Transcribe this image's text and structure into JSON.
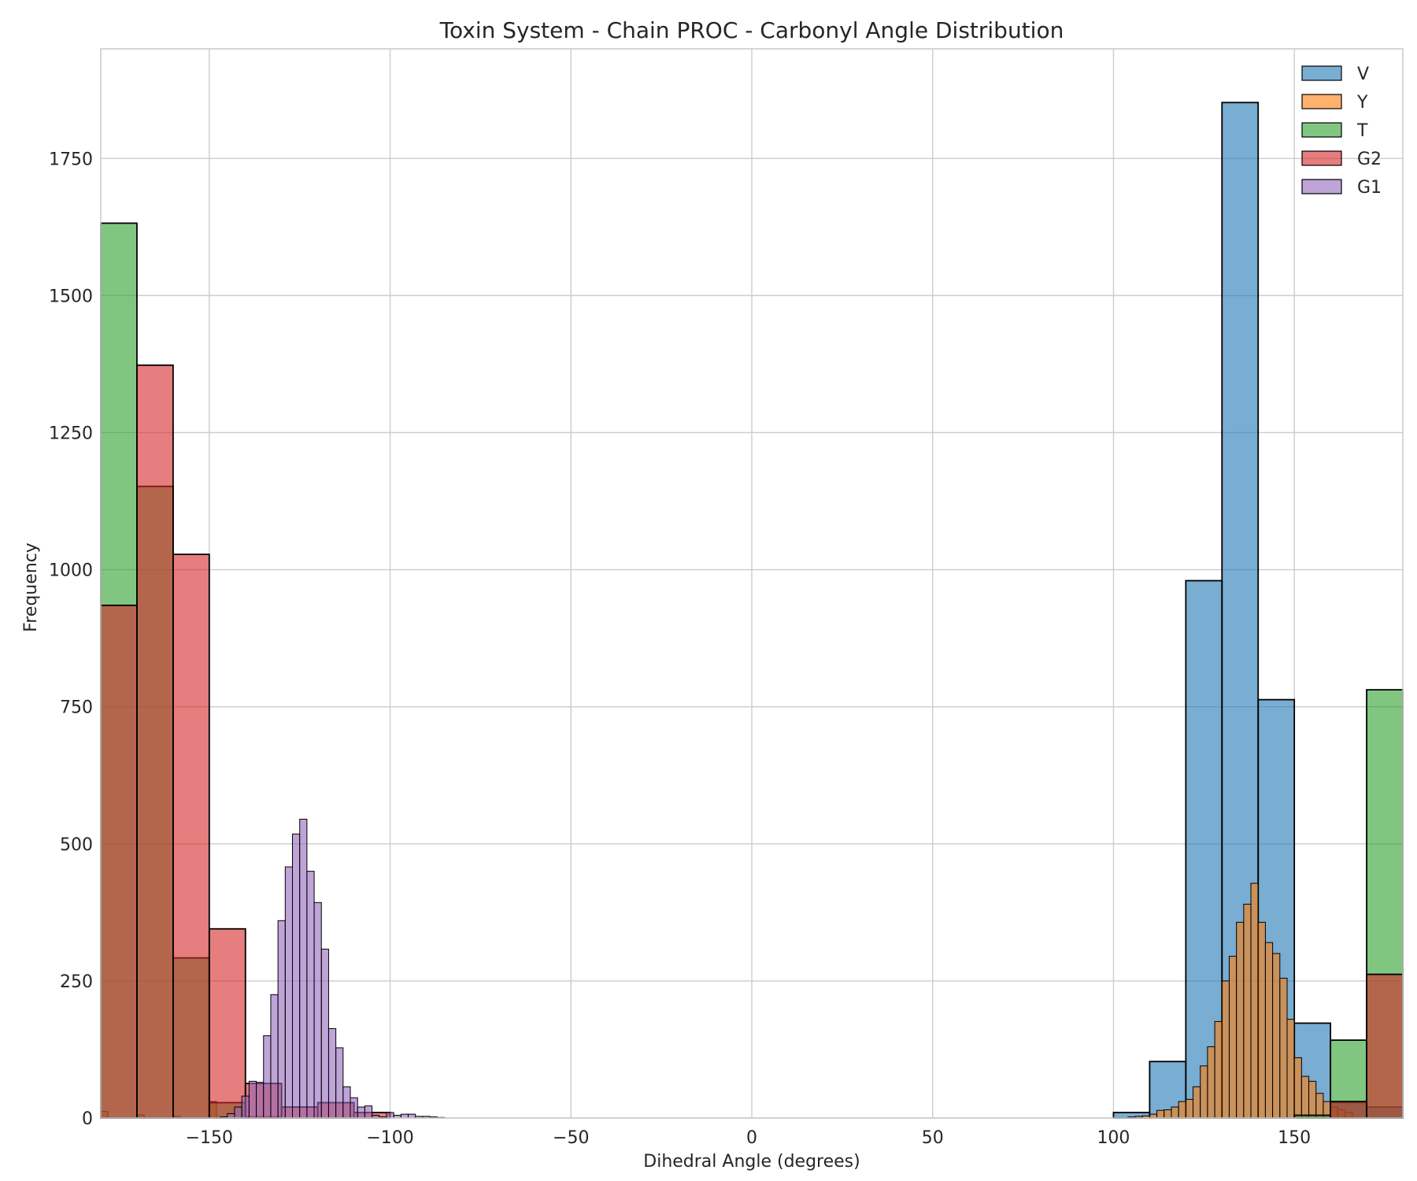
{
  "chart_data": {
    "type": "bar",
    "subtype": "overlapping-histogram",
    "title": "Toxin System - Chain PROC - Carbonyl Angle Distribution",
    "xlabel": "Dihedral Angle (degrees)",
    "ylabel": "Frequency",
    "xlim": [
      -180,
      180
    ],
    "ylim": [
      0,
      1950
    ],
    "xticks": [
      -150,
      -100,
      -50,
      0,
      50,
      100,
      150
    ],
    "xtick_labels": [
      "−150",
      "−100",
      "−50",
      "0",
      "50",
      "100",
      "150"
    ],
    "yticks": [
      0,
      250,
      500,
      750,
      1000,
      1250,
      1500,
      1750
    ],
    "ytick_labels": [
      "0",
      "250",
      "500",
      "750",
      "1000",
      "1250",
      "1500",
      "1750"
    ],
    "grid": true,
    "legend_position": "top-right",
    "series": [
      {
        "name": "V",
        "color": "#1f77b4",
        "bins": [
          [
            -50,
            0
          ],
          [
            100,
            10
          ],
          [
            110,
            103
          ],
          [
            120,
            980
          ],
          [
            130,
            1852
          ],
          [
            140,
            763
          ],
          [
            150,
            173
          ],
          [
            160,
            28
          ],
          [
            170,
            20
          ]
        ],
        "bin_width": 10
      },
      {
        "name": "Y",
        "color": "#ff7f0e",
        "bins": [
          [
            -180,
            12
          ],
          [
            -170,
            6
          ],
          [
            -160,
            3
          ],
          [
            -150,
            30
          ],
          [
            -140,
            2
          ],
          [
            104,
            2
          ],
          [
            106,
            3
          ],
          [
            108,
            4
          ],
          [
            110,
            7
          ],
          [
            112,
            14
          ],
          [
            114,
            15
          ],
          [
            116,
            20
          ],
          [
            118,
            30
          ],
          [
            120,
            34
          ],
          [
            122,
            57
          ],
          [
            124,
            95
          ],
          [
            126,
            130
          ],
          [
            128,
            176
          ],
          [
            130,
            250
          ],
          [
            132,
            295
          ],
          [
            134,
            357
          ],
          [
            136,
            390
          ],
          [
            138,
            428
          ],
          [
            140,
            357
          ],
          [
            142,
            320
          ],
          [
            144,
            300
          ],
          [
            146,
            255
          ],
          [
            148,
            180
          ],
          [
            150,
            110
          ],
          [
            152,
            76
          ],
          [
            154,
            67
          ],
          [
            156,
            45
          ],
          [
            158,
            30
          ],
          [
            160,
            20
          ],
          [
            162,
            15
          ],
          [
            164,
            10
          ]
        ],
        "bin_width": 2
      },
      {
        "name": "T",
        "color": "#2ca02c",
        "bins": [
          [
            -180,
            1632
          ],
          [
            -170,
            1152
          ],
          [
            -160,
            292
          ],
          [
            -150,
            28
          ],
          [
            -140,
            2
          ],
          [
            150,
            5
          ],
          [
            160,
            142
          ],
          [
            170,
            781
          ]
        ],
        "bin_width": 10
      },
      {
        "name": "G2",
        "color": "#d62728",
        "bins": [
          [
            -180,
            935
          ],
          [
            -170,
            1373
          ],
          [
            -160,
            1028
          ],
          [
            -150,
            345
          ],
          [
            -140,
            63
          ],
          [
            -130,
            20
          ],
          [
            -120,
            28
          ],
          [
            -110,
            10
          ],
          [
            160,
            30
          ],
          [
            170,
            262
          ]
        ],
        "bin_width": 10
      },
      {
        "name": "G1",
        "color": "#9467bd",
        "bins": [
          [
            -147,
            2
          ],
          [
            -145,
            8
          ],
          [
            -143,
            20
          ],
          [
            -141,
            40
          ],
          [
            -139,
            67
          ],
          [
            -137,
            65
          ],
          [
            -135,
            150
          ],
          [
            -133,
            225
          ],
          [
            -131,
            360
          ],
          [
            -129,
            458
          ],
          [
            -127,
            518
          ],
          [
            -125,
            545
          ],
          [
            -123,
            450
          ],
          [
            -121,
            393
          ],
          [
            -119,
            308
          ],
          [
            -117,
            163
          ],
          [
            -115,
            128
          ],
          [
            -113,
            57
          ],
          [
            -111,
            37
          ],
          [
            -109,
            20
          ],
          [
            -107,
            22
          ],
          [
            -105,
            5
          ],
          [
            -103,
            2
          ],
          [
            -101,
            10
          ],
          [
            -99,
            5
          ],
          [
            -97,
            7
          ],
          [
            -95,
            7
          ],
          [
            -93,
            3
          ],
          [
            -91,
            3
          ],
          [
            -89,
            2
          ],
          [
            -87,
            1
          ]
        ],
        "bin_width": 2
      }
    ]
  }
}
